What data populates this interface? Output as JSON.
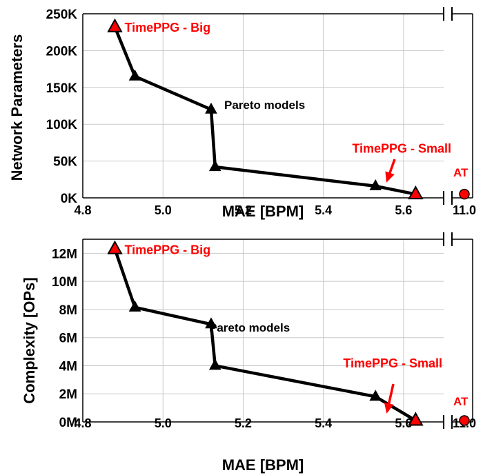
{
  "chart_data": [
    {
      "type": "line",
      "xlabel": "MAE [BPM]",
      "ylabel": "Network Parameters",
      "xlim": [
        4.8,
        5.7
      ],
      "ylim": [
        0,
        250000
      ],
      "x_ticks": [
        4.8,
        5.0,
        5.2,
        5.4,
        5.6
      ],
      "x_tick_labels": [
        "4.8",
        "5.0",
        "5.2",
        "5.4",
        "5.6"
      ],
      "y_ticks": [
        0,
        50000,
        100000,
        150000,
        200000,
        250000
      ],
      "y_tick_labels": [
        "0K",
        "50K",
        "100K",
        "150K",
        "200K",
        "250K"
      ],
      "broken_axis_label": "11.0",
      "grid": true,
      "series": [
        {
          "x": [
            4.88,
            4.93,
            5.12,
            5.13,
            5.53,
            5.63
          ],
          "y": [
            232000,
            165000,
            120000,
            42000,
            16000,
            5000
          ],
          "marker": "triangle",
          "color": "#000000",
          "highlight_indices": [
            0,
            5
          ],
          "highlight_color": "#ff0000"
        }
      ],
      "outlier": {
        "x": 11.0,
        "y": 5000,
        "label": "AT",
        "marker": "circle",
        "color": "#ff0000"
      },
      "annotations": [
        {
          "text": "TimePPG - Big",
          "color": "#ff0000"
        },
        {
          "text": "TimePPG - Small",
          "color": "#ff0000"
        },
        {
          "text": "Pareto models",
          "color": "#000000"
        }
      ]
    },
    {
      "type": "line",
      "xlabel": "MAE [BPM]",
      "ylabel": "Complexity [OPs]",
      "xlim": [
        4.8,
        5.7
      ],
      "ylim": [
        0,
        13000000
      ],
      "x_ticks": [
        4.8,
        5.0,
        5.2,
        5.4,
        5.6
      ],
      "x_tick_labels": [
        "4.8",
        "5.0",
        "5.2",
        "5.4",
        "5.6"
      ],
      "y_ticks": [
        0,
        2000000,
        4000000,
        6000000,
        8000000,
        10000000,
        12000000
      ],
      "y_tick_labels": [
        "0M",
        "2M",
        "4M",
        "6M",
        "8M",
        "10M",
        "12M"
      ],
      "broken_axis_label": "11.0",
      "grid": true,
      "series": [
        {
          "x": [
            4.88,
            4.93,
            5.12,
            5.13,
            5.53,
            5.63
          ],
          "y": [
            12300000,
            8150000,
            6950000,
            4000000,
            1800000,
            100000
          ],
          "marker": "triangle",
          "color": "#000000",
          "highlight_indices": [
            0,
            5
          ],
          "highlight_color": "#ff0000"
        }
      ],
      "outlier": {
        "x": 11.0,
        "y": 100000,
        "label": "AT",
        "marker": "circle",
        "color": "#ff0000"
      },
      "annotations": [
        {
          "text": "TimePPG - Big",
          "color": "#ff0000"
        },
        {
          "text": "TimePPG - Small",
          "color": "#ff0000"
        },
        {
          "text": "Pareto models",
          "color": "#000000"
        }
      ]
    }
  ]
}
